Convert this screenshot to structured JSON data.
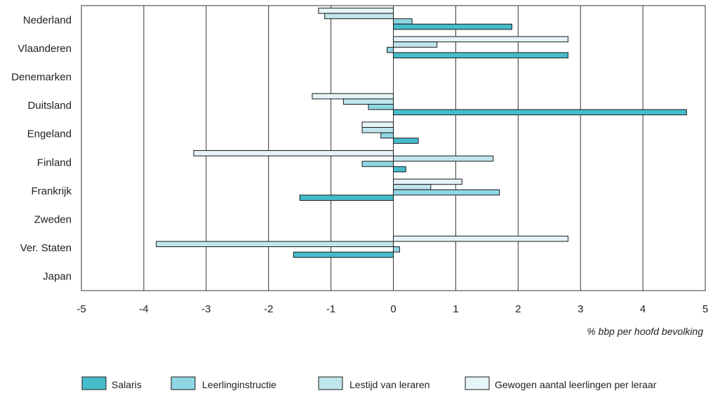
{
  "chart_data": {
    "type": "bar",
    "orientation": "horizontal",
    "categories": [
      "Nederland",
      "Vlaanderen",
      "Denemarken",
      "Duitsland",
      "Engeland",
      "Finland",
      "Frankrijk",
      "Zweden",
      "Ver. Staten",
      "Japan"
    ],
    "series": [
      {
        "name": "Gewogen aantal leerlingen per leraar",
        "color": "#e4f4f7",
        "values": [
          -1.2,
          2.8,
          null,
          -1.3,
          -0.5,
          -3.2,
          1.1,
          null,
          2.8,
          null
        ]
      },
      {
        "name": "Lestijd van leraren",
        "color": "#bfe6ec",
        "values": [
          -1.1,
          0.7,
          null,
          -0.8,
          -0.5,
          1.6,
          0.6,
          null,
          -3.8,
          null
        ]
      },
      {
        "name": "Leerlinginstructie",
        "color": "#8fd6e3",
        "values": [
          0.3,
          -0.1,
          null,
          -0.4,
          -0.2,
          -0.5,
          1.7,
          null,
          0.1,
          null
        ]
      },
      {
        "name": "Salaris",
        "color": "#45bccc",
        "values": [
          1.9,
          2.8,
          null,
          4.7,
          0.4,
          0.2,
          -1.5,
          null,
          -1.6,
          null
        ]
      }
    ],
    "legend_order": [
      3,
      2,
      1,
      0
    ],
    "xlabel": "% bbp per hoofd bevolking",
    "xlim": [
      -5,
      5
    ],
    "xticks": [
      -5,
      -4,
      -3,
      -2,
      -1,
      0,
      1,
      2,
      3,
      4,
      5
    ],
    "grid": "vertical",
    "legend_position": "bottom"
  }
}
